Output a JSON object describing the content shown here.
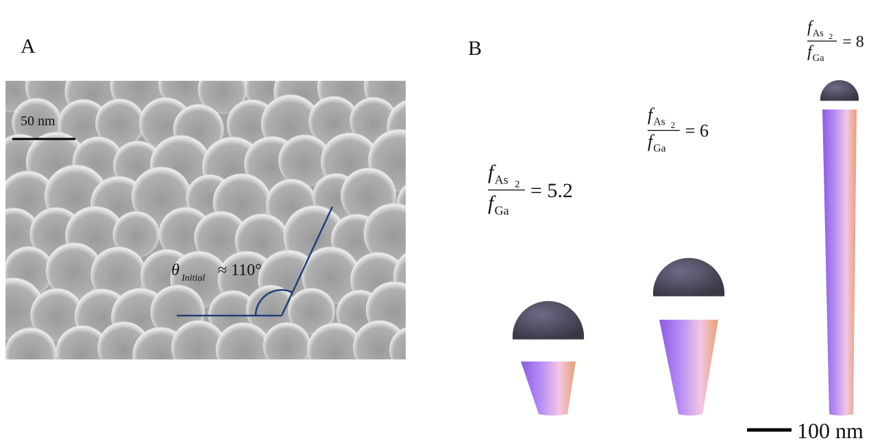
{
  "panel_a": {
    "label": "A",
    "scale_bar": "50 nm",
    "angle": {
      "symbol": "θ",
      "subscript": "Initial",
      "text": "≈ 110°"
    }
  },
  "panel_b": {
    "label": "B",
    "scale_bar": "100 nm",
    "nanowires": [
      {
        "numerator": {
          "symbol": "f",
          "subscript": "As",
          "index": "2"
        },
        "denominator": {
          "symbol": "f",
          "subscript": "Ga"
        },
        "ratio": "= 5.2"
      },
      {
        "numerator": {
          "symbol": "f",
          "subscript": "As",
          "index": "2"
        },
        "denominator": {
          "symbol": "f",
          "subscript": "Ga"
        },
        "ratio": "= 6"
      },
      {
        "numerator": {
          "symbol": "f",
          "subscript": "As",
          "index": "2"
        },
        "denominator": {
          "symbol": "f",
          "subscript": "Ga"
        },
        "ratio": "= 8"
      }
    ]
  }
}
